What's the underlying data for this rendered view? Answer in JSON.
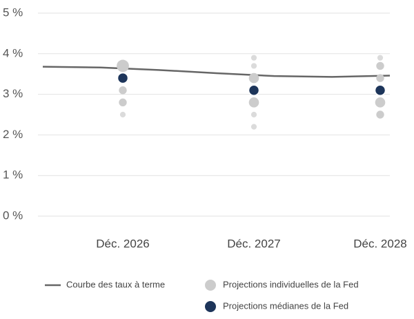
{
  "chart_data": {
    "type": "dot",
    "categories": [
      "Déc. 2026",
      "Déc. 2027",
      "Déc. 2028"
    ],
    "ylim": [
      0,
      5
    ],
    "yticks": [
      {
        "value": 0,
        "label": "0 %"
      },
      {
        "value": 1,
        "label": "1 %"
      },
      {
        "value": 2,
        "label": "2 %"
      },
      {
        "value": 3,
        "label": "3 %"
      },
      {
        "value": 4,
        "label": "4 %"
      },
      {
        "value": 5,
        "label": "5 %"
      }
    ],
    "grid": true,
    "line": {
      "name": "Courbe des taux à terme",
      "color": "#666666",
      "values": [
        3.68,
        3.66,
        3.6,
        3.52,
        3.45,
        3.43,
        3.46
      ]
    },
    "series": [
      {
        "name": "Projections individuelles de la Fed",
        "color": "#cccccc",
        "values": [
          [
            3.7,
            3.4,
            3.1,
            2.8,
            2.5
          ],
          [
            3.9,
            3.7,
            3.4,
            3.1,
            2.8,
            2.5,
            2.2
          ],
          [
            3.9,
            3.7,
            3.4,
            3.1,
            2.8,
            2.5
          ]
        ],
        "sizes": [
          [
            4,
            3,
            2,
            2,
            1
          ],
          [
            1,
            1,
            3,
            3,
            3,
            1,
            1
          ],
          [
            1,
            2,
            2,
            3,
            3,
            2
          ]
        ]
      },
      {
        "name": "Projections médianes de la Fed",
        "color": "#1d355a",
        "values": [
          3.4,
          3.1,
          3.1
        ]
      }
    ]
  }
}
